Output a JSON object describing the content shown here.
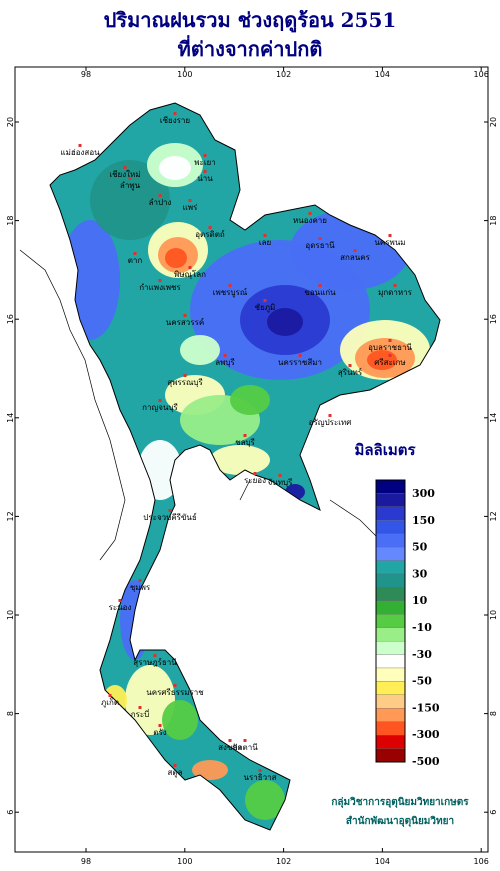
{
  "title": [
    "ปริมาณฝนรวม ช่วงฤดูร้อน 2551",
    "ที่ต่างจากค่าปกติ"
  ],
  "map": {
    "lon_ticks": [
      98,
      100,
      102,
      104,
      106
    ],
    "lat_ticks": [
      20,
      18,
      16,
      14,
      12,
      10,
      8,
      6
    ],
    "places": [
      "เชียงราย",
      "เชียงใหม่",
      "ลำพูน",
      "พะเยา",
      "น่าน",
      "แม่ฮ่องสอน",
      "แพร่",
      "ลำปาง",
      "อุตรดิตถ์",
      "ตาก",
      "พิษณุโลก",
      "กำแพงเพชร",
      "เพชรบูรณ์",
      "เลย",
      "หนองคาย",
      "อุดรธานี",
      "สกลนคร",
      "นครพนม",
      "มุกดาหาร",
      "ขอนแก่น",
      "ชัยภูมิ",
      "นครสวรรค์",
      "ลพบุรี",
      "สุพรรณบุรี",
      "กาญจนบุรี",
      "นครราชสีมา",
      "อุบลราชธานี",
      "ศรีสะเกษ",
      "สุรินทร์",
      "อรัญประเทศ",
      "ชลบุรี",
      "ระยอง",
      "จันทบุรี",
      "ประจวบคีรีขันธ์",
      "ชุมพร",
      "ระนอง",
      "สุราษฎร์ธานี",
      "ภูเก็ต",
      "กระบี่",
      "นครศรีธรรมราช",
      "ตรัง",
      "สงขลา",
      "สตูล",
      "ปัตตานี",
      "นราธิวาส"
    ]
  },
  "legend": {
    "title": "มิลลิเมตร",
    "labels": [
      300,
      150,
      50,
      30,
      10,
      -10,
      -30,
      -50,
      -150,
      -300,
      -500
    ],
    "colors": [
      "#000080",
      "#1a1aa0",
      "#2a3ad0",
      "#3355e8",
      "#4a6ef5",
      "#6688ff",
      "#22a5a5",
      "#20938a",
      "#2e8b57",
      "#33b033",
      "#55cc44",
      "#99ee88",
      "#ccffcc",
      "#ffffff",
      "#ffffbb",
      "#ffee55",
      "#ffcc88",
      "#ff9955",
      "#ff5522",
      "#dd0000",
      "#990000"
    ]
  },
  "credit": [
    "กลุ่มวิชาการอุตุนิยมวิทยาเกษตร",
    "สำนักพัฒนาอุตุนิยมวิทยา"
  ]
}
